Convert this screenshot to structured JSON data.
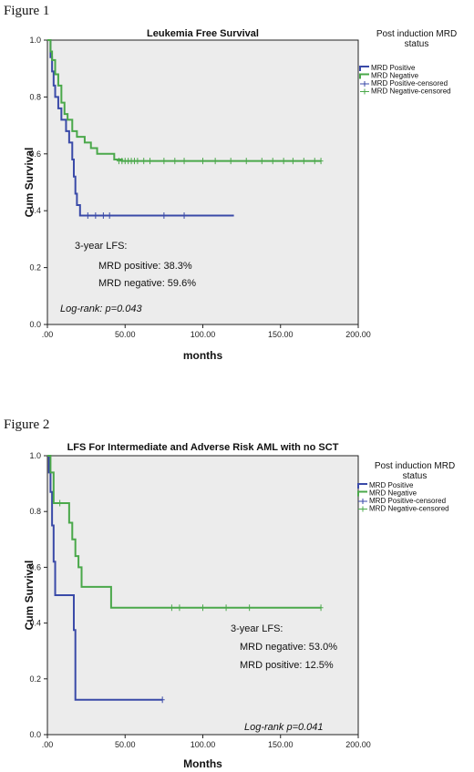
{
  "figures": [
    {
      "label": "Figure 1"
    },
    {
      "label": "Figure 2"
    }
  ],
  "chart_data": [
    {
      "type": "line",
      "title": "Leukemia Free Survival",
      "xlabel": "months",
      "ylabel": "Cum Survival",
      "xlim": [
        0,
        200
      ],
      "ylim": [
        0,
        1
      ],
      "x_ticks": [
        ".00",
        "50.00",
        "100.00",
        "150.00",
        "200.00"
      ],
      "y_ticks": [
        "0.0",
        "0.2",
        "0.4",
        "0.6",
        "0.8",
        "1.0"
      ],
      "grid": false,
      "legend": {
        "position": "right",
        "title_lines": [
          "Post induction MRD",
          "status"
        ],
        "entries": [
          "MRD Positive",
          "MRD Negative",
          "MRD Positive-censored",
          "MRD Negative-censored"
        ]
      },
      "annotations": [
        "3-year LFS:",
        "MRD positive: 38.3%",
        "MRD negative: 59.6%"
      ],
      "footnote": "Log-rank: p=0.043",
      "series": [
        {
          "name": "MRD Positive",
          "color": "#3a4aa8",
          "step": [
            [
              0,
              1.0
            ],
            [
              2,
              0.94
            ],
            [
              3,
              0.89
            ],
            [
              4,
              0.84
            ],
            [
              5,
              0.8
            ],
            [
              7,
              0.76
            ],
            [
              9,
              0.72
            ],
            [
              12,
              0.68
            ],
            [
              14,
              0.64
            ],
            [
              16,
              0.58
            ],
            [
              17,
              0.52
            ],
            [
              18,
              0.46
            ],
            [
              19,
              0.42
            ],
            [
              21,
              0.383
            ],
            [
              120,
              0.383
            ]
          ],
          "censored": [
            [
              26,
              0.383
            ],
            [
              31,
              0.383
            ],
            [
              36,
              0.383
            ],
            [
              40,
              0.383
            ],
            [
              75,
              0.383
            ],
            [
              88,
              0.383
            ]
          ]
        },
        {
          "name": "MRD Negative",
          "color": "#4aa84a",
          "step": [
            [
              0,
              1.0
            ],
            [
              2,
              0.96
            ],
            [
              3,
              0.93
            ],
            [
              5,
              0.88
            ],
            [
              7,
              0.84
            ],
            [
              9,
              0.78
            ],
            [
              11,
              0.74
            ],
            [
              13,
              0.72
            ],
            [
              16,
              0.68
            ],
            [
              19,
              0.66
            ],
            [
              24,
              0.64
            ],
            [
              28,
              0.62
            ],
            [
              32,
              0.6
            ],
            [
              43,
              0.58
            ],
            [
              48,
              0.575
            ],
            [
              176,
              0.575
            ]
          ],
          "censored": [
            [
              46,
              0.575
            ],
            [
              48,
              0.575
            ],
            [
              50,
              0.575
            ],
            [
              52,
              0.575
            ],
            [
              54,
              0.575
            ],
            [
              56,
              0.575
            ],
            [
              58,
              0.575
            ],
            [
              62,
              0.575
            ],
            [
              66,
              0.575
            ],
            [
              75,
              0.575
            ],
            [
              82,
              0.575
            ],
            [
              88,
              0.575
            ],
            [
              100,
              0.575
            ],
            [
              108,
              0.575
            ],
            [
              118,
              0.575
            ],
            [
              128,
              0.575
            ],
            [
              138,
              0.575
            ],
            [
              145,
              0.575
            ],
            [
              152,
              0.575
            ],
            [
              158,
              0.575
            ],
            [
              165,
              0.575
            ],
            [
              172,
              0.575
            ],
            [
              176,
              0.575
            ]
          ]
        }
      ]
    },
    {
      "type": "line",
      "title": "LFS For Intermediate and Adverse Risk AML with no SCT",
      "xlabel": "Months",
      "ylabel": "Cum Survival",
      "xlim": [
        0,
        200
      ],
      "ylim": [
        0,
        1
      ],
      "x_ticks": [
        ".00",
        "50.00",
        "100.00",
        "150.00",
        "200.00"
      ],
      "y_ticks": [
        "0.0",
        "0.2",
        "0.4",
        "0.6",
        "0.8",
        "1.0"
      ],
      "grid": false,
      "legend": {
        "position": "right",
        "title_lines": [
          "Post induction MRD",
          "status"
        ],
        "entries": [
          "MRD Positive",
          "MRD Negative",
          "MRD Positive-censored",
          "MRD Negative-censored"
        ]
      },
      "annotations": [
        "3-year LFS:",
        "MRD negative: 53.0%",
        "MRD positive: 12.5%"
      ],
      "footnote": "Log-rank p=0.041",
      "series": [
        {
          "name": "MRD Positive",
          "color": "#3a4aa8",
          "step": [
            [
              0,
              1.0
            ],
            [
              1,
              0.94
            ],
            [
              2,
              0.87
            ],
            [
              3,
              0.75
            ],
            [
              4,
              0.62
            ],
            [
              5,
              0.5
            ],
            [
              16,
              0.5
            ],
            [
              17,
              0.375
            ],
            [
              18,
              0.125
            ],
            [
              74,
              0.125
            ]
          ],
          "censored": [
            [
              74,
              0.125
            ]
          ]
        },
        {
          "name": "MRD Negative",
          "color": "#4aa84a",
          "step": [
            [
              0,
              1.0
            ],
            [
              2,
              0.94
            ],
            [
              4,
              0.83
            ],
            [
              12,
              0.83
            ],
            [
              14,
              0.76
            ],
            [
              16,
              0.7
            ],
            [
              18,
              0.64
            ],
            [
              20,
              0.6
            ],
            [
              22,
              0.53
            ],
            [
              40,
              0.53
            ],
            [
              41,
              0.455
            ],
            [
              176,
              0.455
            ]
          ],
          "censored": [
            [
              8,
              0.83
            ],
            [
              80,
              0.455
            ],
            [
              85,
              0.455
            ],
            [
              100,
              0.455
            ],
            [
              115,
              0.455
            ],
            [
              130,
              0.455
            ],
            [
              176,
              0.455
            ]
          ]
        }
      ]
    }
  ]
}
